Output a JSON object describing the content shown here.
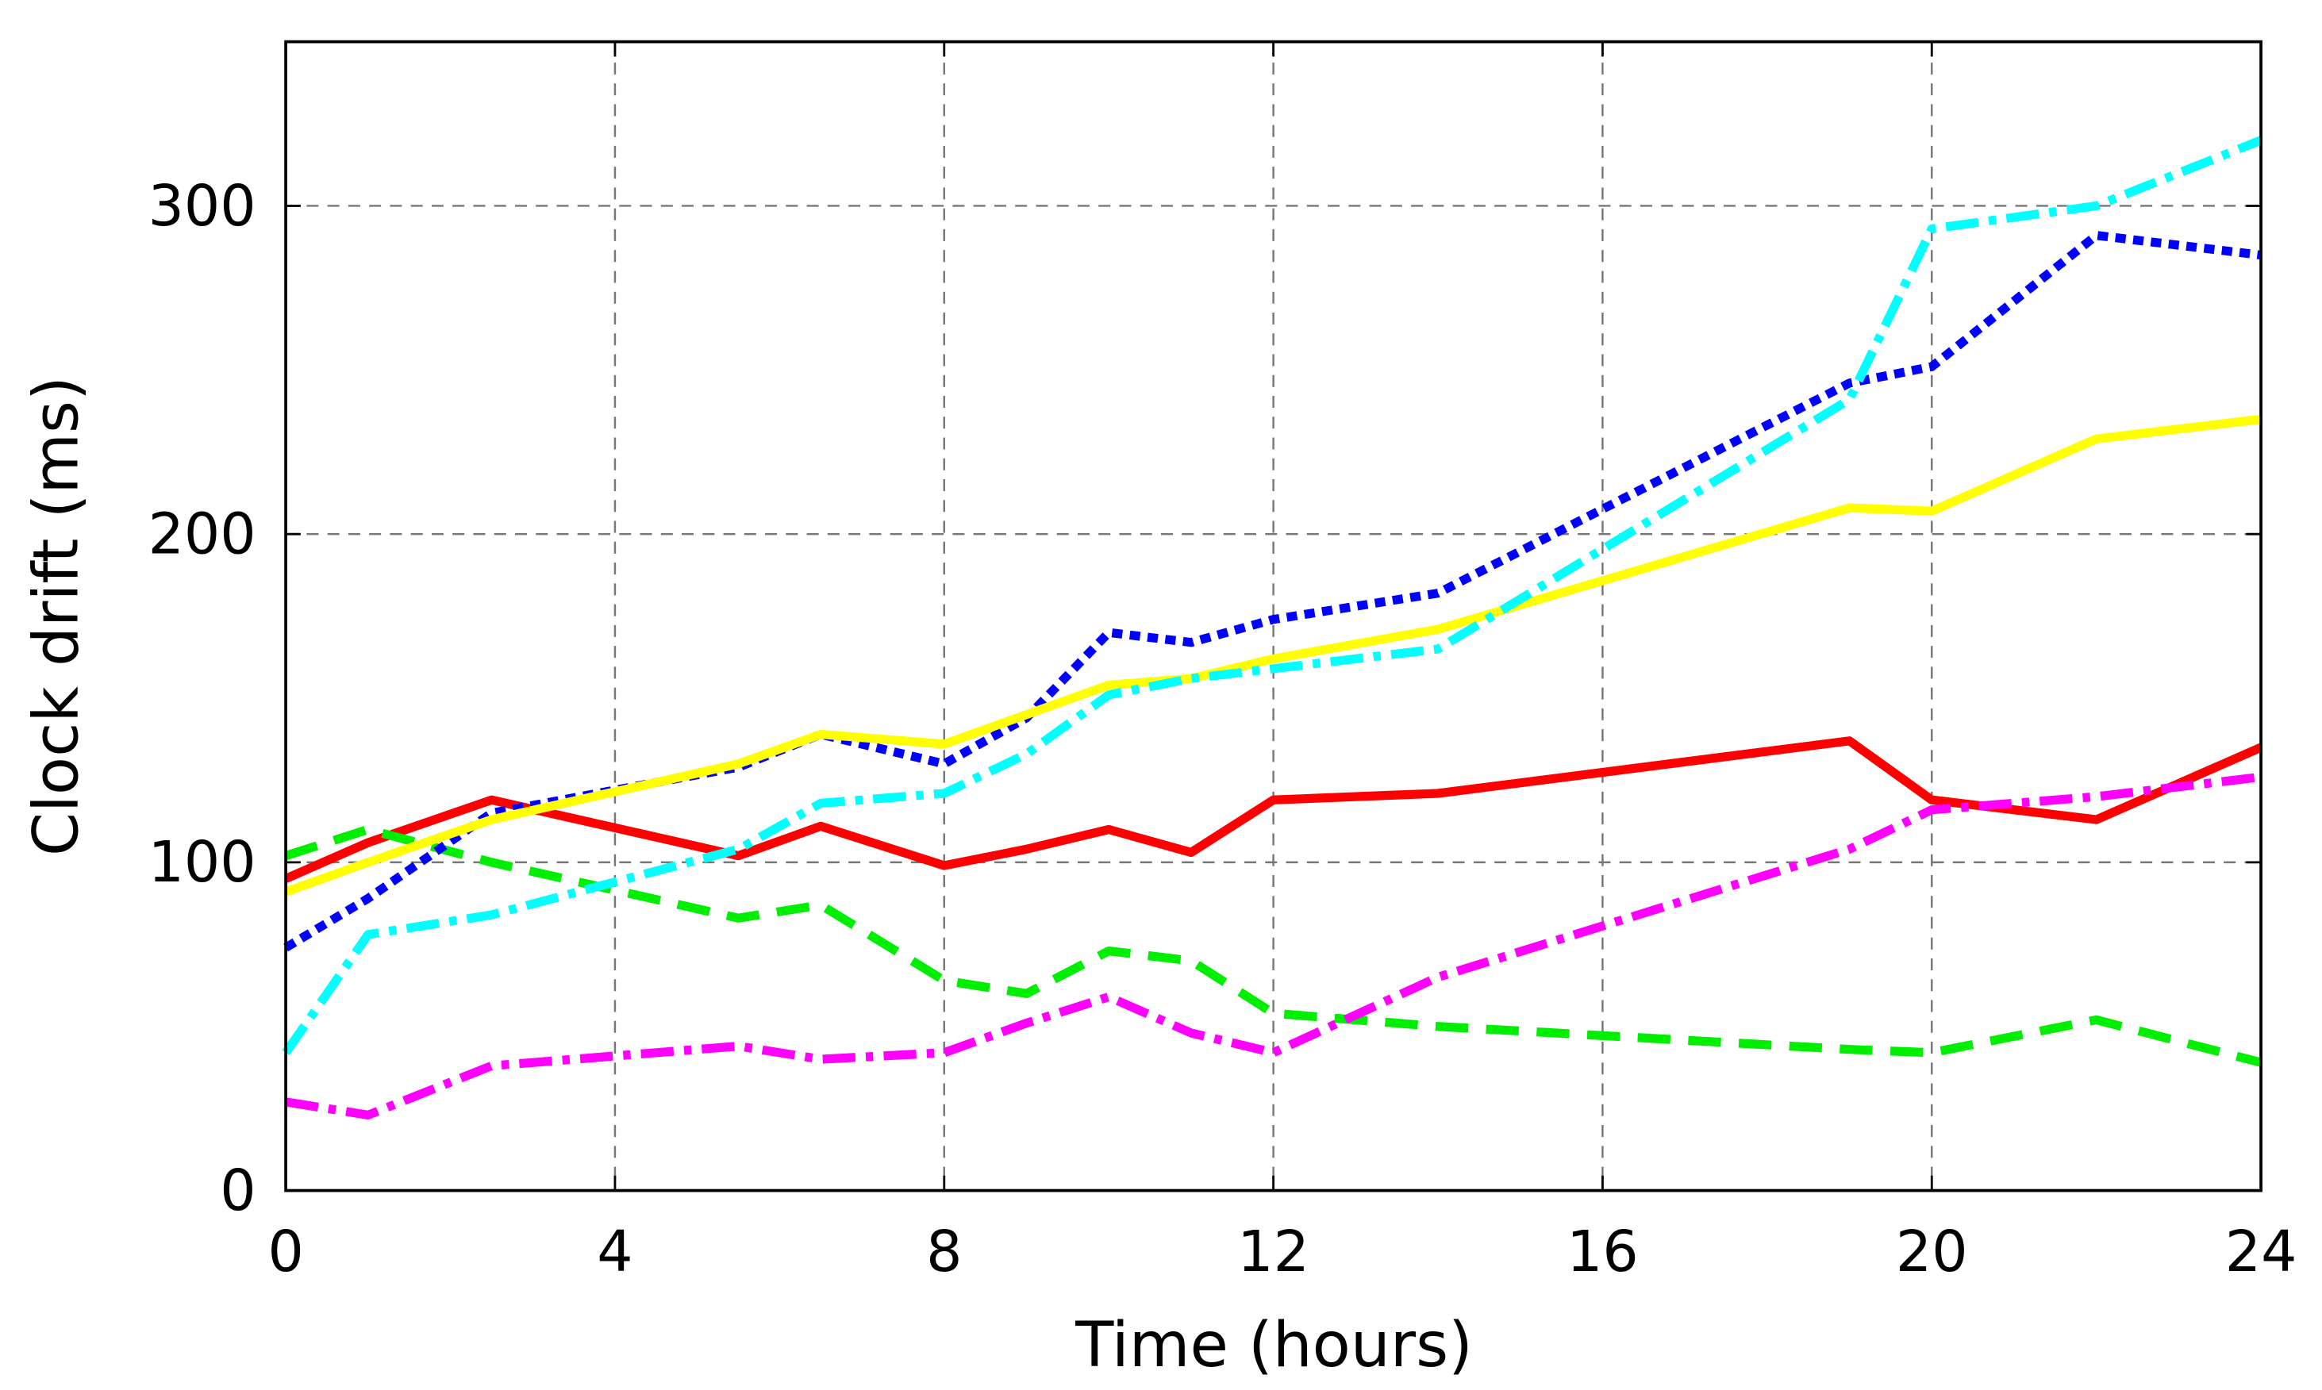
{
  "chart_data": {
    "type": "line",
    "xlabel": "Time (hours)",
    "ylabel": "Clock drift (ms)",
    "x": [
      0,
      1,
      2.5,
      5.5,
      6.5,
      8,
      9,
      10,
      11,
      12,
      14,
      19,
      20,
      22,
      24
    ],
    "series": [
      {
        "color": "#ff0000",
        "dash": "solid",
        "values": [
          95,
          106,
          119,
          102,
          111,
          99,
          104,
          110,
          103,
          119,
          121,
          137,
          119,
          113,
          135
        ]
      },
      {
        "color": "#00ee00",
        "dash": "dashed",
        "values": [
          102,
          110,
          100,
          83,
          87,
          64,
          60,
          73,
          70,
          54,
          50,
          43,
          42,
          52,
          39
        ]
      },
      {
        "color": "#0000ff",
        "dash": "dotted",
        "values": [
          74,
          89,
          115,
          129,
          139,
          130,
          144,
          170,
          167,
          174,
          182,
          246,
          251,
          291,
          285
        ]
      },
      {
        "color": "#ffff00",
        "dash": "solid",
        "values": [
          91,
          100,
          113,
          130,
          139,
          136,
          145,
          154,
          156,
          162,
          171,
          208,
          207,
          229,
          235
        ]
      },
      {
        "color": "#00ffff",
        "dash": "dashdot",
        "values": [
          42,
          78,
          84,
          104,
          118,
          121,
          133,
          151,
          156,
          159,
          165,
          241,
          293,
          300,
          320
        ]
      },
      {
        "color": "#ff00ff",
        "dash": "dashdot",
        "values": [
          27,
          23,
          38,
          44,
          40,
          42,
          51,
          59,
          48,
          42,
          65,
          104,
          116,
          120,
          126
        ]
      }
    ],
    "xlim": [
      0,
      24
    ],
    "xticks": [
      0,
      4,
      8,
      12,
      16,
      20,
      24
    ],
    "ylim": [
      0,
      350
    ],
    "yticks": [
      0,
      100,
      200,
      300
    ],
    "grid": true
  }
}
